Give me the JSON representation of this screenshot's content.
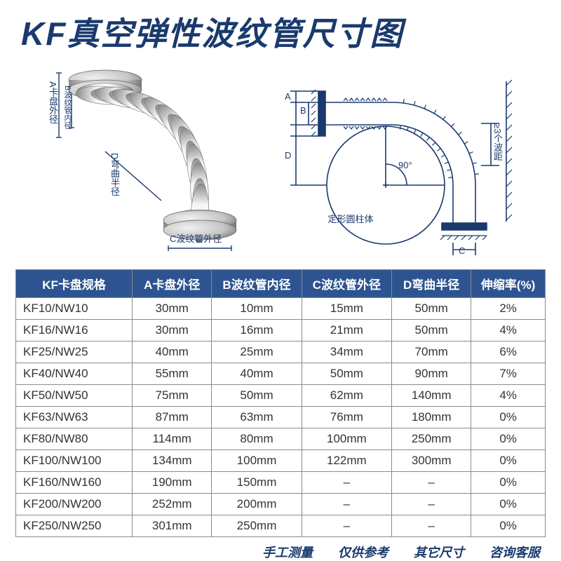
{
  "title": "KF真空弹性波纹管尺寸图",
  "left_diagram": {
    "labels": {
      "A": "A卡盘外径",
      "B": "B波纹管内径",
      "C": "C波纹管外径",
      "D": "D弯曲半径"
    }
  },
  "right_diagram": {
    "labels": {
      "A": "A",
      "B": "B",
      "C": "C",
      "D": "D",
      "angle": "90°",
      "pitch": "≥3个波距",
      "cylinder": "定形圆柱体"
    }
  },
  "table": {
    "columns": [
      "KF卡盘规格",
      "A卡盘外径",
      "B波纹管内径",
      "C波纹管外径",
      "D弯曲半径",
      "伸缩率(%)"
    ],
    "rows": [
      [
        "KF10/NW10",
        "30mm",
        "10mm",
        "15mm",
        "50mm",
        "2%"
      ],
      [
        "KF16/NW16",
        "30mm",
        "16mm",
        "21mm",
        "50mm",
        "4%"
      ],
      [
        "KF25/NW25",
        "40mm",
        "25mm",
        "34mm",
        "70mm",
        "6%"
      ],
      [
        "KF40/NW40",
        "55mm",
        "40mm",
        "50mm",
        "90mm",
        "7%"
      ],
      [
        "KF50/NW50",
        "75mm",
        "50mm",
        "62mm",
        "140mm",
        "4%"
      ],
      [
        "KF63/NW63",
        "87mm",
        "63mm",
        "76mm",
        "180mm",
        "0%"
      ],
      [
        "KF80/NW80",
        "114mm",
        "80mm",
        "100mm",
        "250mm",
        "0%"
      ],
      [
        "KF100/NW100",
        "134mm",
        "100mm",
        "122mm",
        "300mm",
        "0%"
      ],
      [
        "KF160/NW160",
        "190mm",
        "150mm",
        "–",
        "–",
        "0%"
      ],
      [
        "KF200/NW200",
        "252mm",
        "200mm",
        "–",
        "–",
        "0%"
      ],
      [
        "KF250/NW250",
        "301mm",
        "250mm",
        "–",
        "–",
        "0%"
      ]
    ],
    "col_widths": [
      "22%",
      "15%",
      "17%",
      "17%",
      "15%",
      "14%"
    ],
    "header_bg": "#2d5490",
    "header_fg": "#ffffff",
    "border_color": "#8a8a8a"
  },
  "footer": [
    "手工测量",
    "仅供参考",
    "其它尺寸",
    "咨询客服"
  ],
  "colors": {
    "primary": "#1a3a6e",
    "bg": "#ffffff",
    "metal_light": "#e8e8e8",
    "metal_dark": "#909090"
  }
}
